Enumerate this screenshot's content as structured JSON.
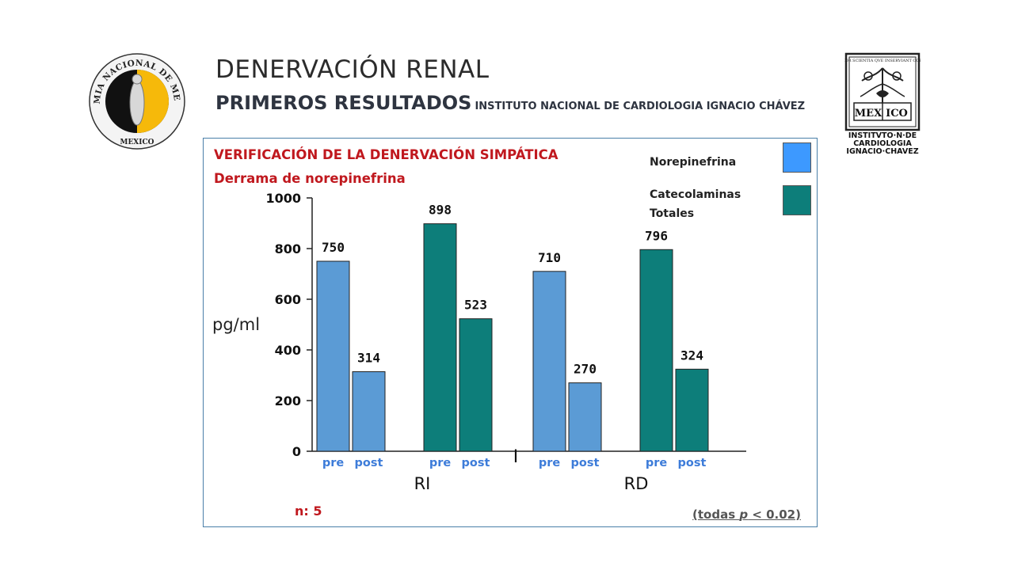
{
  "header": {
    "title": "DENERVACIÓN RENAL",
    "subtitle_big": "PRIMEROS RESULTADOS",
    "subtitle_small": "INSTITUTO NACIONAL DE CARDIOLOGIA IGNACIO CHÁVEZ"
  },
  "logos": {
    "left": "ACADEMIA NACIONAL DE MEDICINA MEXICO",
    "right_top": "AMOR SCIENTIA QVE INSERVIANT CORDI",
    "right_mid_a": "MEX",
    "right_mid_b": "ICO",
    "right_bottom": [
      "INSTITVTO·N·DE",
      "CARDIOLOGIA",
      "IGNACIO·CHAVEZ"
    ]
  },
  "panel": {
    "title": "VERIFICACIÓN DE LA DENERVACIÓN SIMPÁTICA",
    "subtitle": "Derrama de norepinefrina",
    "n_label": "n:  5",
    "note_prefix": "(todas ",
    "note_p": "p",
    "note_suffix": " < 0.02)"
  },
  "legend": {
    "items": [
      {
        "label": "Norepinefrina",
        "color": "#3d99ff"
      },
      {
        "label_line1": "Catecolaminas",
        "label_line2": "Totales",
        "color": "#0d7e7a"
      }
    ]
  },
  "chart_data": {
    "type": "bar",
    "ylabel": "pg/ml",
    "ylim": [
      0,
      1000
    ],
    "yticks": [
      "0",
      "200",
      "400",
      "600",
      "800",
      "1000"
    ],
    "groups": [
      "RI",
      "RD"
    ],
    "bar_labels": [
      "pre",
      "post"
    ],
    "series": [
      {
        "name": "Norepinefrina",
        "color": "#5b9bd5",
        "group": "RI",
        "values": [
          750,
          314
        ]
      },
      {
        "name": "Catecolaminas Totales",
        "color": "#0d7e7a",
        "group": "RI",
        "values": [
          898,
          523
        ]
      },
      {
        "name": "Norepinefrina",
        "color": "#5b9bd5",
        "group": "RD",
        "values": [
          710,
          270
        ]
      },
      {
        "name": "Catecolaminas Totales",
        "color": "#0d7e7a",
        "group": "RD",
        "values": [
          796,
          324
        ]
      }
    ],
    "divider_label": "I"
  }
}
